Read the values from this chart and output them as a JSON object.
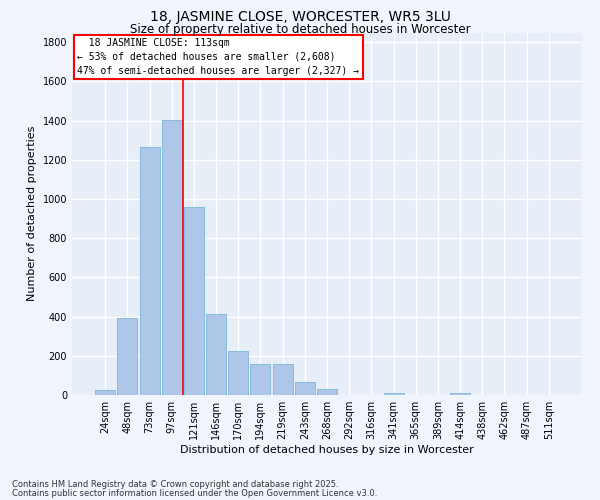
{
  "title": "18, JASMINE CLOSE, WORCESTER, WR5 3LU",
  "subtitle": "Size of property relative to detached houses in Worcester",
  "xlabel": "Distribution of detached houses by size in Worcester",
  "ylabel": "Number of detached properties",
  "categories": [
    "24sqm",
    "48sqm",
    "73sqm",
    "97sqm",
    "121sqm",
    "146sqm",
    "170sqm",
    "194sqm",
    "219sqm",
    "243sqm",
    "268sqm",
    "292sqm",
    "316sqm",
    "341sqm",
    "365sqm",
    "389sqm",
    "414sqm",
    "438sqm",
    "462sqm",
    "487sqm",
    "511sqm"
  ],
  "values": [
    25,
    395,
    1265,
    1405,
    960,
    415,
    225,
    160,
    160,
    65,
    30,
    0,
    0,
    10,
    0,
    0,
    10,
    0,
    0,
    0,
    0
  ],
  "bar_color": "#aec6e8",
  "bar_edge_color": "#6baed6",
  "background_color": "#e8eef8",
  "grid_color": "#ffffff",
  "vline_color": "red",
  "vline_x": 3.5,
  "annotation_title": "18 JASMINE CLOSE: 113sqm",
  "annotation_line1": "← 53% of detached houses are smaller (2,608)",
  "annotation_line2": "47% of semi-detached houses are larger (2,327) →",
  "ylim": [
    0,
    1850
  ],
  "yticks": [
    0,
    200,
    400,
    600,
    800,
    1000,
    1200,
    1400,
    1600,
    1800
  ],
  "footnote1": "Contains HM Land Registry data © Crown copyright and database right 2025.",
  "footnote2": "Contains public sector information licensed under the Open Government Licence v3.0.",
  "title_fontsize": 10,
  "subtitle_fontsize": 8.5,
  "label_fontsize": 8,
  "tick_fontsize": 7,
  "annotation_fontsize": 7,
  "footnote_fontsize": 6,
  "fig_bg_color": "#f0f4fc"
}
